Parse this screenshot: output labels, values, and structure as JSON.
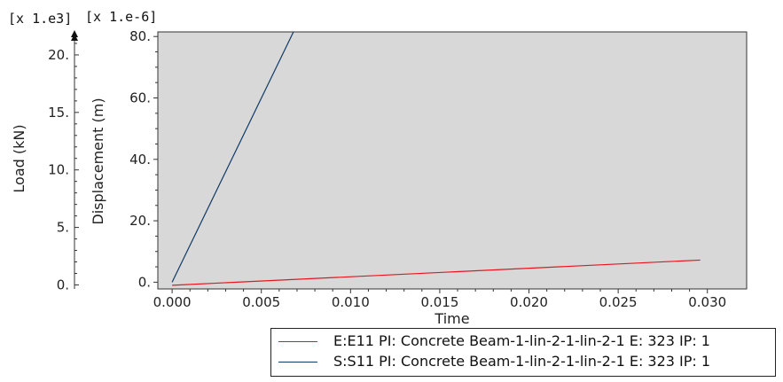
{
  "chart_data": {
    "type": "line",
    "x": {
      "label": "Time",
      "ticks": [
        "0.000",
        "0.005",
        "0.010",
        "0.015",
        "0.020",
        "0.025",
        "0.030"
      ],
      "tick_values": [
        0,
        0.005,
        0.01,
        0.015,
        0.02,
        0.025,
        0.03
      ],
      "range": [
        -0.0008,
        0.0322
      ]
    },
    "y_left": {
      "label": "Load (kN)",
      "multiplier": "[x 1.e3]",
      "ticks": [
        "0.",
        "5.",
        "10.",
        "15.",
        "20."
      ],
      "tick_values": [
        0,
        5,
        10,
        15,
        20
      ],
      "range": [
        -0.35,
        22.0
      ]
    },
    "y_right": {
      "label": "Displacement (m)",
      "multiplier": "[x 1.e-6]",
      "ticks": [
        "0.",
        "20.",
        "40.",
        "60.",
        "80."
      ],
      "tick_values": [
        0,
        20,
        40,
        60,
        80
      ],
      "range": [
        -2.2,
        81.5
      ]
    },
    "series": [
      {
        "name": "E:E11 PI: Concrete Beam-1-lin-2-1-lin-2-1 E: 323 IP: 1",
        "color": "#e8141e",
        "axis": "y_right",
        "points": [
          [
            0,
            -1.0
          ],
          [
            0.0296,
            7.2
          ]
        ]
      },
      {
        "name": "S:S11 PI: Concrete Beam-1-lin-2-1-lin-2-1 E: 323 IP: 1",
        "color": "#103a66",
        "axis": "y_right",
        "points": [
          [
            0,
            0
          ],
          [
            0.0068,
            81.5
          ]
        ]
      }
    ],
    "plot_background": "#d8d8d8",
    "grid": false,
    "legend_position": "bottom-right"
  }
}
